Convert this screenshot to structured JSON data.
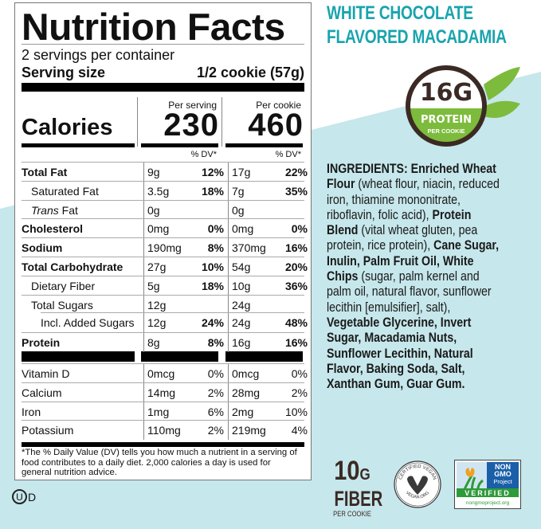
{
  "colors": {
    "background_blue": "#c6e7eb",
    "title_teal": "#19a4ae",
    "brown": "#3b2a24",
    "green": "#7dbb3c"
  },
  "product_title": {
    "line1": "WHITE CHOCOLATE",
    "line2": "FLAVORED MACADAMIA"
  },
  "protein_badge": {
    "amount": "16G",
    "label": "PROTEIN",
    "sub": "PER COOKIE",
    "icon": "leaf-icon"
  },
  "nutrition": {
    "title": "Nutrition Facts",
    "servings": "2 servings per container",
    "serving_size_label": "Serving size",
    "serving_size_value": "1/2 cookie (57g)",
    "calories_label": "Calories",
    "col1_header": "Per serving",
    "col2_header": "Per cookie",
    "col1_calories": "230",
    "col2_calories": "460",
    "dv_header": "% DV*",
    "rows": [
      {
        "name": "Total Fat",
        "bold": true,
        "indent": 0,
        "a1": "9g",
        "d1": "12%",
        "a2": "17g",
        "d2": "22%"
      },
      {
        "name": "Saturated Fat",
        "indent": 1,
        "a1": "3.5g",
        "d1": "18%",
        "a2": "7g",
        "d2": "35%"
      },
      {
        "italic": "Trans",
        "name": " Fat",
        "indent": 1,
        "a1": "0g",
        "d1": "",
        "a2": "0g",
        "d2": ""
      },
      {
        "name": "Cholesterol",
        "bold": true,
        "indent": 0,
        "a1": "0mg",
        "d1": "0%",
        "a2": "0mg",
        "d2": "0%"
      },
      {
        "name": "Sodium",
        "bold": true,
        "indent": 0,
        "a1": "190mg",
        "d1": "8%",
        "a2": "370mg",
        "d2": "16%"
      },
      {
        "name": "Total Carbohydrate",
        "bold": true,
        "indent": 0,
        "a1": "27g",
        "d1": "10%",
        "a2": "54g",
        "d2": "20%"
      },
      {
        "name": "Dietary Fiber",
        "indent": 1,
        "a1": "5g",
        "d1": "18%",
        "a2": "10g",
        "d2": "36%"
      },
      {
        "name": "Total Sugars",
        "indent": 1,
        "a1": "12g",
        "d1": "",
        "a2": "24g",
        "d2": ""
      },
      {
        "name": "Incl. Added Sugars",
        "indent": 2,
        "a1": "12g",
        "d1": "24%",
        "a2": "24g",
        "d2": "48%"
      },
      {
        "name": "Protein",
        "bold": true,
        "indent": 0,
        "a1": "8g",
        "d1": "8%",
        "a2": "16g",
        "d2": "16%"
      }
    ],
    "vitamins": [
      {
        "name": "Vitamin D",
        "a1": "0mcg",
        "d1": "0%",
        "a2": "0mcg",
        "d2": "0%"
      },
      {
        "name": "Calcium",
        "a1": "14mg",
        "d1": "2%",
        "a2": "28mg",
        "d2": "2%"
      },
      {
        "name": "Iron",
        "a1": "1mg",
        "d1": "6%",
        "a2": "2mg",
        "d2": "10%"
      },
      {
        "name": "Potassium",
        "a1": "110mg",
        "d1": "2%",
        "a2": "219mg",
        "d2": "4%"
      }
    ],
    "footnote": "*The % Daily Value (DV) tells you how much a nutrient in a serving of food contributes to a daily diet. 2,000 calories a day is used for general nutrition advice."
  },
  "ingredients": {
    "lines": [
      [
        {
          "t": "INGREDIENTS: Enriched Wheat",
          "b": true
        }
      ],
      [
        {
          "t": "Flour",
          "b": true
        },
        {
          "t": " (wheat flour, niacin, reduced"
        }
      ],
      [
        {
          "t": "iron, thiamine mononitrate,"
        }
      ],
      [
        {
          "t": "riboflavin, folic acid), "
        },
        {
          "t": "Protein",
          "b": true
        }
      ],
      [
        {
          "t": "Blend",
          "b": true
        },
        {
          "t": " (vital wheat gluten, pea"
        }
      ],
      [
        {
          "t": "protein, rice protein), "
        },
        {
          "t": "Cane Sugar,",
          "b": true
        }
      ],
      [
        {
          "t": "Inulin, Palm Fruit Oil, White",
          "b": true
        }
      ],
      [
        {
          "t": "Chips",
          "b": true
        },
        {
          "t": " (sugar, palm kernel and"
        }
      ],
      [
        {
          "t": "palm oil, natural flavor, sunflower"
        }
      ],
      [
        {
          "t": "lecithin [emulsifier], salt),"
        }
      ],
      [
        {
          "t": "Vegetable Glycerine, Invert",
          "b": true
        }
      ],
      [
        {
          "t": "Sugar, Macadamia Nuts,",
          "b": true
        }
      ],
      [
        {
          "t": "Sunflower Lecithin, Natural",
          "b": true
        }
      ],
      [
        {
          "t": "Flavor, Baking Soda, Salt,",
          "b": true
        }
      ],
      [
        {
          "t": "Xanthan Gum, Guar Gum.",
          "b": true
        }
      ]
    ]
  },
  "kosher_mark": {
    "letter": "U",
    "suffix": "D"
  },
  "fiber_badge": {
    "amount": "10",
    "unit": "G",
    "label": "FIBER",
    "sub": "PER COOKIE"
  },
  "vegan_badge": {
    "top": "CERTIFIED VEGAN",
    "bottom": "VEGAN.ORG"
  },
  "nongmo_badge": {
    "line1": "NON",
    "line2": "GMO",
    "line3": "Project",
    "verified": "VERIFIED",
    "url": "nongmoproject.org"
  }
}
